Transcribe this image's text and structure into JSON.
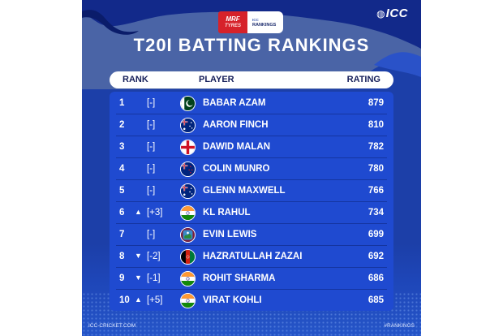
{
  "branding": {
    "org_logo": "ICC",
    "sponsor_primary": "MRF",
    "sponsor_secondary": "TYRES",
    "sponsor_rankings_small": "ICC",
    "sponsor_rankings_label": "RANKINGS"
  },
  "title": "T20I BATTING RANKINGS",
  "table": {
    "headers": {
      "rank": "RANK",
      "player": "PLAYER",
      "rating": "RATING"
    },
    "rows": [
      {
        "rank": "1",
        "arrow": "",
        "move": "[-]",
        "flag": "pakistan",
        "name": "BABAR AZAM",
        "rating": "879"
      },
      {
        "rank": "2",
        "arrow": "",
        "move": "[-]",
        "flag": "australia",
        "name": "AARON FINCH",
        "rating": "810"
      },
      {
        "rank": "3",
        "arrow": "",
        "move": "[-]",
        "flag": "england",
        "name": "DAWID MALAN",
        "rating": "782"
      },
      {
        "rank": "4",
        "arrow": "",
        "move": "[-]",
        "flag": "new-zealand",
        "name": "COLIN MUNRO",
        "rating": "780"
      },
      {
        "rank": "5",
        "arrow": "",
        "move": "[-]",
        "flag": "australia",
        "name": "GLENN MAXWELL",
        "rating": "766"
      },
      {
        "rank": "6",
        "arrow": "▲",
        "move": "[+3]",
        "flag": "india",
        "name": "KL RAHUL",
        "rating": "734"
      },
      {
        "rank": "7",
        "arrow": "",
        "move": "[-]",
        "flag": "west-indies",
        "name": "EVIN LEWIS",
        "rating": "699"
      },
      {
        "rank": "8",
        "arrow": "▼",
        "move": "[-2]",
        "flag": "afghanistan",
        "name": "HAZRATULLAH ZAZAI",
        "rating": "692"
      },
      {
        "rank": "9",
        "arrow": "▼",
        "move": "[-1]",
        "flag": "india",
        "name": "ROHIT SHARMA",
        "rating": "686"
      },
      {
        "rank": "10",
        "arrow": "▲",
        "move": "[+5]",
        "flag": "india",
        "name": "VIRAT KOHLI",
        "rating": "685"
      }
    ]
  },
  "footer": {
    "website": "ICC-CRICKET.COM",
    "hashtag": "#RANKINGS"
  },
  "colors": {
    "panel": "#1c3fa8",
    "card": "#1f4ad0",
    "header_text": "#17205a",
    "sponsor_red": "#d6222a"
  }
}
